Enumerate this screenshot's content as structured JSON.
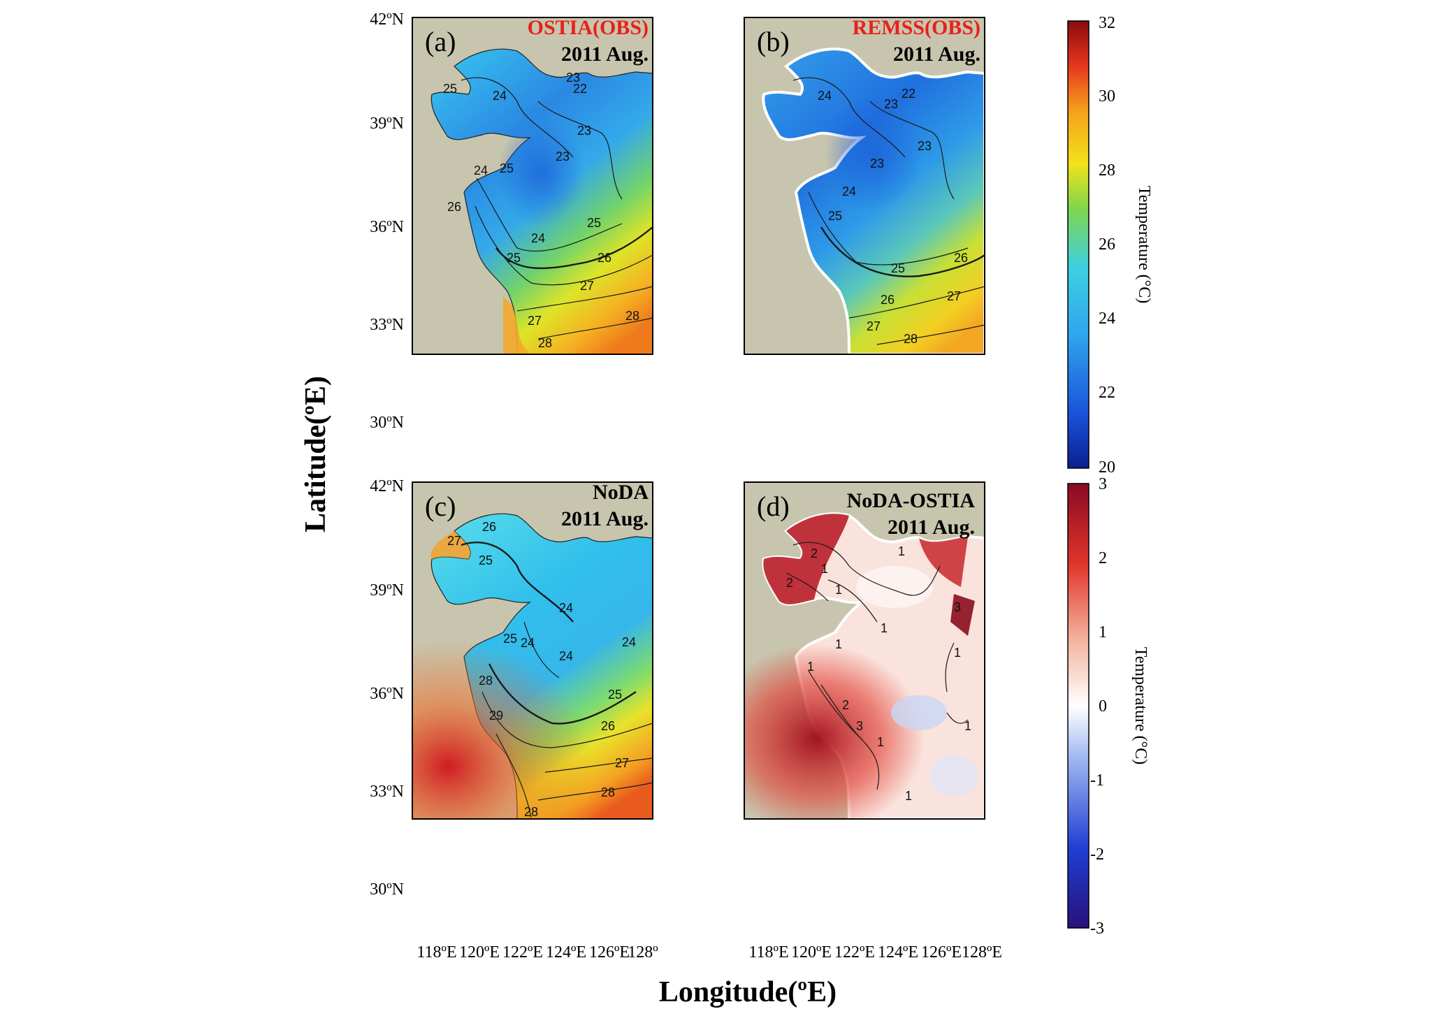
{
  "figure": {
    "y_axis_title": "Latitude(ºE)",
    "x_axis_title": "Longitude(ºE)",
    "lat_ticks": [
      "42ºN",
      "39ºN",
      "36ºN",
      "33ºN",
      "30ºN"
    ],
    "lon_ticks": [
      "118ºE",
      "120ºE",
      "122ºE",
      "124ºE",
      "126ºE",
      "128º"
    ],
    "lon_ticks_d": [
      "118ºE",
      "120ºE",
      "122ºE",
      "124ºE",
      "126ºE",
      "128ºE"
    ]
  },
  "panels": {
    "a": {
      "letter": "(a)",
      "title": "OSTIA(OBS)",
      "date": "2011 Aug.",
      "title_color": "#e8201a",
      "contours": [
        "22",
        "23",
        "23",
        "23",
        "24",
        "24",
        "24",
        "25",
        "25",
        "25",
        "25",
        "26",
        "26",
        "27",
        "28",
        "28",
        "27"
      ]
    },
    "b": {
      "letter": "(b)",
      "title": "REMSS(OBS)",
      "date": "2011 Aug.",
      "title_color": "#e8201a",
      "contours": [
        "22",
        "23",
        "23",
        "23",
        "24",
        "24",
        "25",
        "25",
        "26",
        "26",
        "27",
        "27",
        "28"
      ]
    },
    "c": {
      "letter": "(c)",
      "title": "NoDA",
      "date": "2011 Aug.",
      "title_color": "#000000",
      "contours": [
        "24",
        "24",
        "24",
        "24",
        "25",
        "25",
        "25",
        "26",
        "26",
        "27",
        "27",
        "28",
        "28",
        "29",
        "28"
      ]
    },
    "d": {
      "letter": "(d)",
      "title": "NoDA-OSTIA",
      "date": "2011 Aug.",
      "title_color": "#000000",
      "contours": [
        "2",
        "2",
        "1",
        "1",
        "1",
        "1",
        "3",
        "1",
        "1",
        "1",
        "2",
        "3",
        "1",
        "1",
        "1"
      ]
    }
  },
  "colorbars": {
    "top": {
      "label": "Temperature (°C)",
      "ticks": [
        "32",
        "30",
        "28",
        "26",
        "24",
        "22",
        "20"
      ],
      "range": [
        20,
        32
      ]
    },
    "bottom": {
      "label": "Temperature (°C)",
      "ticks": [
        "3",
        "2",
        "1",
        "0",
        "-1",
        "-2",
        "-3"
      ],
      "range": [
        -3,
        3
      ]
    }
  },
  "colors": {
    "land": "#c8c5ae",
    "frame": "#000000"
  }
}
